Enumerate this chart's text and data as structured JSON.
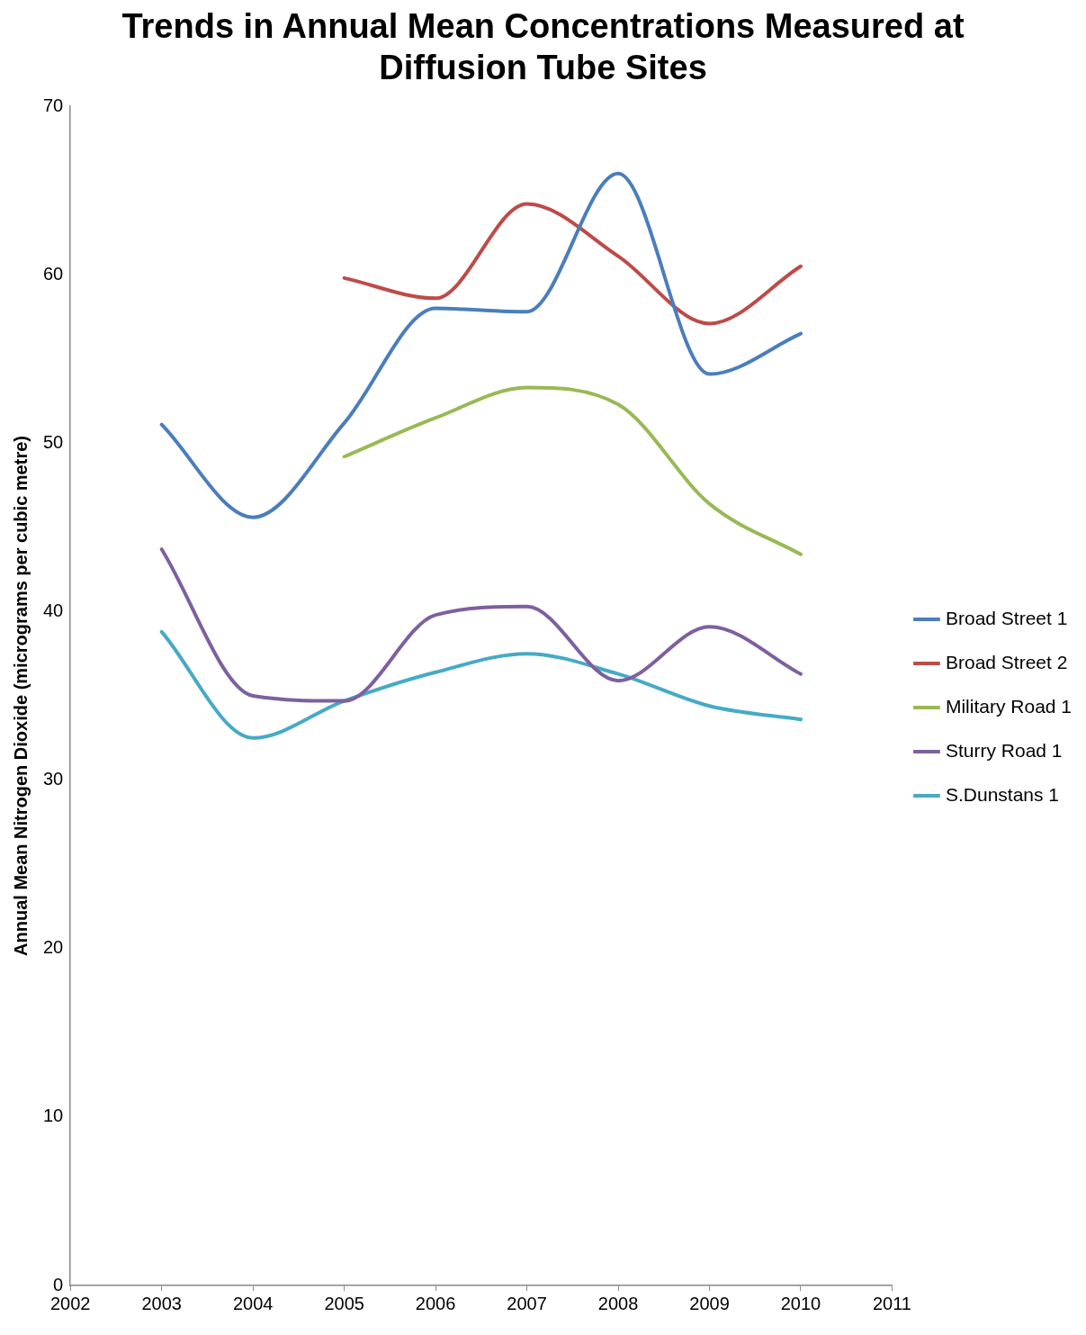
{
  "chart_data": {
    "type": "line",
    "title": "Trends in Annual Mean Concentrations Measured at Diffusion Tube Sites",
    "ylabel": "Annual Mean Nitrogen Dioxide (micrograms per cubic metre)",
    "x": [
      2003,
      2004,
      2005,
      2006,
      2007,
      2008,
      2009,
      2010
    ],
    "series": [
      {
        "name": "Broad Street 1",
        "color": "#4a7ebb",
        "values": [
          51.1,
          45.6,
          51.2,
          58.0,
          57.8,
          66.0,
          54.1,
          56.5
        ]
      },
      {
        "name": "Broad Street 2",
        "color": "#be4b48",
        "values": [
          null,
          null,
          59.8,
          58.6,
          64.2,
          61.1,
          57.1,
          60.5
        ]
      },
      {
        "name": "Military Road 1",
        "color": "#98b954",
        "values": [
          null,
          null,
          49.2,
          51.5,
          53.3,
          52.3,
          46.4,
          43.4
        ]
      },
      {
        "name": "Sturry Road 1",
        "color": "#7d60a0",
        "values": [
          43.7,
          35.0,
          34.7,
          39.8,
          40.3,
          35.9,
          39.1,
          36.3
        ]
      },
      {
        "name": "S.Dunstans 1",
        "color": "#46aac5",
        "values": [
          38.8,
          32.5,
          34.7,
          36.4,
          37.5,
          36.3,
          34.4,
          33.6
        ]
      }
    ],
    "xlim": [
      2002,
      2011
    ],
    "xticks": [
      2002,
      2003,
      2004,
      2005,
      2006,
      2007,
      2008,
      2009,
      2010,
      2011
    ],
    "ylim": [
      0,
      70
    ],
    "yticks": [
      0,
      10,
      20,
      30,
      40,
      50,
      60,
      70
    ],
    "grid": false,
    "legend": "right",
    "marker": "none",
    "line_style": "solid"
  }
}
